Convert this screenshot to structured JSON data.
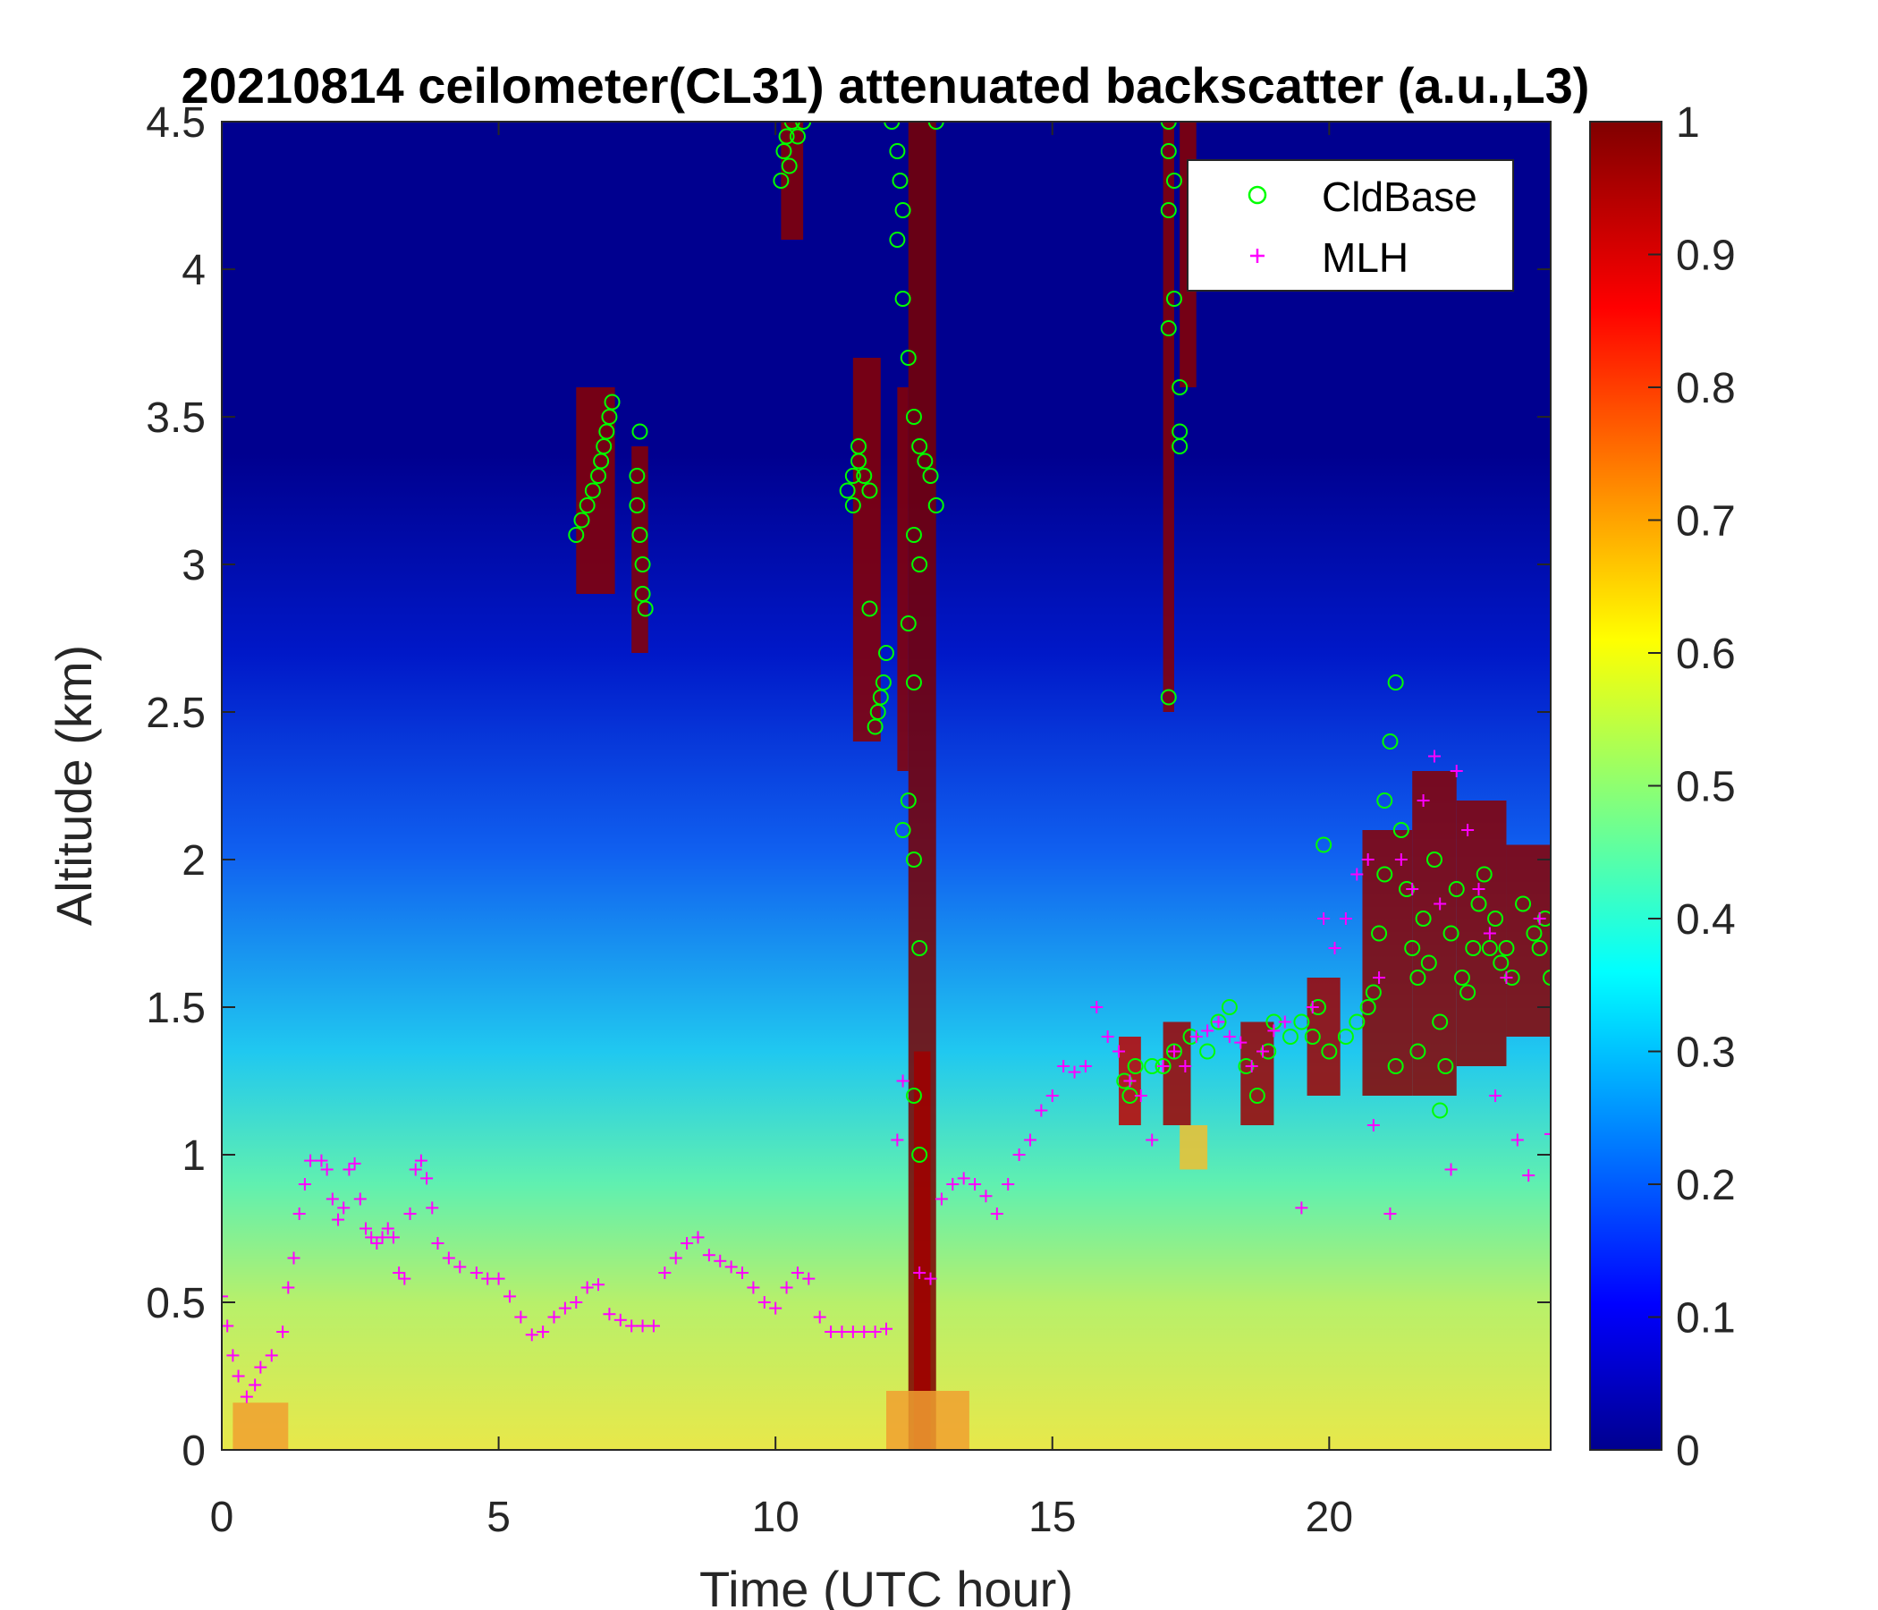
{
  "chart_data": {
    "type": "heatmap",
    "title": "20210814 ceilometer(CL31) attenuated backscatter (a.u.,L3)",
    "xlabel": "Time (UTC hour)",
    "ylabel": "Altitude (km)",
    "xlim": [
      0,
      24
    ],
    "ylim": [
      0,
      4.5
    ],
    "xticks": [
      0,
      5,
      10,
      15,
      20
    ],
    "xtick_labels": [
      "0",
      "5",
      "10",
      "15",
      "20"
    ],
    "yticks": [
      0,
      0.5,
      1,
      1.5,
      2,
      2.5,
      3,
      3.5,
      4,
      4.5
    ],
    "ytick_labels": [
      "0",
      "0.5",
      "1",
      "1.5",
      "2",
      "2.5",
      "3",
      "3.5",
      "4",
      "4.5"
    ],
    "colorbar": {
      "colormap": "jet",
      "range": [
        0,
        1
      ],
      "ticks": [
        0,
        0.1,
        0.2,
        0.3,
        0.4,
        0.5,
        0.6,
        0.7,
        0.8,
        0.9,
        1
      ],
      "tick_labels": [
        "0",
        "0.1",
        "0.2",
        "0.3",
        "0.4",
        "0.5",
        "0.6",
        "0.7",
        "0.8",
        "0.9",
        "1"
      ]
    },
    "legend": {
      "placement": "top-right",
      "entries": [
        {
          "label": "CldBase",
          "marker": "circle",
          "color": "#00ff00"
        },
        {
          "label": "MLH",
          "marker": "plus",
          "color": "#ff00ff"
        }
      ]
    },
    "series": [
      {
        "name": "CldBase",
        "marker": "circle",
        "color": "#00ff00",
        "points": [
          [
            6.4,
            3.1
          ],
          [
            6.5,
            3.15
          ],
          [
            6.6,
            3.2
          ],
          [
            6.7,
            3.25
          ],
          [
            6.8,
            3.3
          ],
          [
            6.9,
            3.4
          ],
          [
            7.0,
            3.5
          ],
          [
            7.05,
            3.55
          ],
          [
            6.95,
            3.45
          ],
          [
            6.85,
            3.35
          ],
          [
            7.5,
            3.3
          ],
          [
            7.5,
            3.2
          ],
          [
            7.55,
            3.1
          ],
          [
            7.6,
            3.0
          ],
          [
            7.6,
            2.9
          ],
          [
            7.65,
            2.85
          ],
          [
            7.55,
            3.45
          ],
          [
            10.1,
            4.3
          ],
          [
            10.15,
            4.4
          ],
          [
            10.2,
            4.45
          ],
          [
            10.3,
            4.5
          ],
          [
            10.4,
            4.45
          ],
          [
            10.5,
            4.5
          ],
          [
            10.25,
            4.35
          ],
          [
            11.3,
            3.25
          ],
          [
            11.4,
            3.3
          ],
          [
            11.5,
            3.35
          ],
          [
            11.6,
            3.3
          ],
          [
            11.7,
            3.25
          ],
          [
            11.5,
            3.4
          ],
          [
            11.4,
            3.2
          ],
          [
            11.7,
            2.85
          ],
          [
            11.8,
            2.45
          ],
          [
            11.85,
            2.5
          ],
          [
            11.9,
            2.55
          ],
          [
            11.95,
            2.6
          ],
          [
            12.0,
            2.7
          ],
          [
            12.1,
            4.5
          ],
          [
            12.2,
            4.4
          ],
          [
            12.25,
            4.3
          ],
          [
            12.3,
            4.2
          ],
          [
            12.2,
            4.1
          ],
          [
            12.3,
            3.9
          ],
          [
            12.4,
            3.7
          ],
          [
            12.5,
            3.5
          ],
          [
            12.6,
            3.4
          ],
          [
            12.7,
            3.35
          ],
          [
            12.8,
            3.3
          ],
          [
            12.9,
            3.2
          ],
          [
            12.5,
            3.1
          ],
          [
            12.6,
            3.0
          ],
          [
            12.4,
            2.8
          ],
          [
            12.5,
            2.6
          ],
          [
            12.4,
            2.2
          ],
          [
            12.3,
            2.1
          ],
          [
            12.5,
            2.0
          ],
          [
            12.6,
            1.7
          ],
          [
            12.5,
            1.2
          ],
          [
            12.6,
            1.0
          ],
          [
            12.9,
            4.5
          ],
          [
            17.1,
            4.5
          ],
          [
            17.1,
            4.4
          ],
          [
            17.2,
            4.3
          ],
          [
            17.1,
            4.2
          ],
          [
            17.2,
            3.9
          ],
          [
            17.1,
            3.8
          ],
          [
            17.3,
            3.6
          ],
          [
            17.3,
            3.45
          ],
          [
            17.3,
            3.4
          ],
          [
            17.1,
            2.55
          ],
          [
            16.3,
            1.25
          ],
          [
            16.4,
            1.2
          ],
          [
            16.5,
            1.3
          ],
          [
            16.8,
            1.3
          ],
          [
            17.0,
            1.3
          ],
          [
            17.2,
            1.35
          ],
          [
            17.5,
            1.4
          ],
          [
            17.8,
            1.35
          ],
          [
            18.0,
            1.45
          ],
          [
            18.2,
            1.5
          ],
          [
            18.5,
            1.3
          ],
          [
            18.7,
            1.2
          ],
          [
            18.9,
            1.35
          ],
          [
            19.0,
            1.45
          ],
          [
            19.3,
            1.4
          ],
          [
            19.5,
            1.45
          ],
          [
            19.7,
            1.4
          ],
          [
            19.8,
            1.5
          ],
          [
            19.9,
            2.05
          ],
          [
            20.0,
            1.35
          ],
          [
            20.3,
            1.4
          ],
          [
            20.5,
            1.45
          ],
          [
            20.7,
            1.5
          ],
          [
            20.8,
            1.55
          ],
          [
            20.9,
            1.75
          ],
          [
            21.0,
            1.95
          ],
          [
            21.0,
            2.2
          ],
          [
            21.1,
            2.4
          ],
          [
            21.2,
            2.6
          ],
          [
            21.3,
            2.1
          ],
          [
            21.4,
            1.9
          ],
          [
            21.5,
            1.7
          ],
          [
            21.6,
            1.6
          ],
          [
            21.7,
            1.8
          ],
          [
            21.8,
            1.65
          ],
          [
            21.9,
            2.0
          ],
          [
            22.0,
            1.45
          ],
          [
            22.1,
            1.3
          ],
          [
            22.2,
            1.75
          ],
          [
            22.3,
            1.9
          ],
          [
            22.4,
            1.6
          ],
          [
            22.5,
            1.55
          ],
          [
            22.6,
            1.7
          ],
          [
            22.7,
            1.85
          ],
          [
            22.8,
            1.95
          ],
          [
            22.9,
            1.7
          ],
          [
            23.0,
            1.8
          ],
          [
            23.1,
            1.65
          ],
          [
            23.3,
            1.6
          ],
          [
            23.5,
            1.85
          ],
          [
            23.7,
            1.75
          ],
          [
            23.8,
            1.7
          ],
          [
            23.9,
            1.8
          ],
          [
            24.0,
            1.6
          ],
          [
            21.2,
            1.3
          ],
          [
            21.6,
            1.35
          ],
          [
            22.0,
            1.15
          ],
          [
            23.2,
            1.7
          ]
        ]
      },
      {
        "name": "MLH",
        "marker": "plus",
        "color": "#ff00ff",
        "points": [
          [
            0.0,
            0.52
          ],
          [
            0.1,
            0.42
          ],
          [
            0.2,
            0.32
          ],
          [
            0.3,
            0.25
          ],
          [
            0.45,
            0.18
          ],
          [
            0.6,
            0.22
          ],
          [
            0.7,
            0.28
          ],
          [
            0.9,
            0.32
          ],
          [
            1.1,
            0.4
          ],
          [
            1.2,
            0.55
          ],
          [
            1.3,
            0.65
          ],
          [
            1.4,
            0.8
          ],
          [
            1.5,
            0.9
          ],
          [
            1.6,
            0.98
          ],
          [
            1.8,
            0.98
          ],
          [
            1.9,
            0.95
          ],
          [
            2.0,
            0.85
          ],
          [
            2.1,
            0.78
          ],
          [
            2.2,
            0.82
          ],
          [
            2.3,
            0.95
          ],
          [
            2.4,
            0.97
          ],
          [
            2.5,
            0.85
          ],
          [
            2.6,
            0.75
          ],
          [
            2.7,
            0.72
          ],
          [
            2.8,
            0.7
          ],
          [
            2.9,
            0.72
          ],
          [
            3.0,
            0.75
          ],
          [
            3.1,
            0.72
          ],
          [
            3.2,
            0.6
          ],
          [
            3.3,
            0.58
          ],
          [
            3.4,
            0.8
          ],
          [
            3.5,
            0.95
          ],
          [
            3.6,
            0.98
          ],
          [
            3.7,
            0.92
          ],
          [
            3.8,
            0.82
          ],
          [
            3.9,
            0.7
          ],
          [
            4.1,
            0.65
          ],
          [
            4.3,
            0.62
          ],
          [
            4.6,
            0.6
          ],
          [
            4.8,
            0.58
          ],
          [
            5.0,
            0.58
          ],
          [
            5.2,
            0.52
          ],
          [
            5.4,
            0.45
          ],
          [
            5.6,
            0.39
          ],
          [
            5.8,
            0.4
          ],
          [
            6.0,
            0.45
          ],
          [
            6.2,
            0.48
          ],
          [
            6.4,
            0.5
          ],
          [
            6.6,
            0.55
          ],
          [
            6.8,
            0.56
          ],
          [
            7.0,
            0.46
          ],
          [
            7.2,
            0.44
          ],
          [
            7.4,
            0.42
          ],
          [
            7.6,
            0.42
          ],
          [
            7.8,
            0.42
          ],
          [
            8.0,
            0.6
          ],
          [
            8.2,
            0.65
          ],
          [
            8.4,
            0.7
          ],
          [
            8.6,
            0.72
          ],
          [
            8.8,
            0.66
          ],
          [
            9.0,
            0.64
          ],
          [
            9.2,
            0.62
          ],
          [
            9.4,
            0.6
          ],
          [
            9.6,
            0.55
          ],
          [
            9.8,
            0.5
          ],
          [
            10.0,
            0.48
          ],
          [
            10.2,
            0.55
          ],
          [
            10.4,
            0.6
          ],
          [
            10.6,
            0.58
          ],
          [
            10.8,
            0.45
          ],
          [
            11.0,
            0.4
          ],
          [
            11.2,
            0.4
          ],
          [
            11.4,
            0.4
          ],
          [
            11.6,
            0.4
          ],
          [
            11.8,
            0.4
          ],
          [
            12.0,
            0.41
          ],
          [
            12.2,
            1.05
          ],
          [
            12.3,
            1.25
          ],
          [
            12.6,
            0.6
          ],
          [
            12.8,
            0.58
          ],
          [
            13.0,
            0.85
          ],
          [
            13.2,
            0.9
          ],
          [
            13.4,
            0.92
          ],
          [
            13.6,
            0.9
          ],
          [
            13.8,
            0.86
          ],
          [
            14.0,
            0.8
          ],
          [
            14.2,
            0.9
          ],
          [
            14.4,
            1.0
          ],
          [
            14.6,
            1.05
          ],
          [
            14.8,
            1.15
          ],
          [
            15.0,
            1.2
          ],
          [
            15.2,
            1.3
          ],
          [
            15.4,
            1.28
          ],
          [
            15.6,
            1.3
          ],
          [
            15.8,
            1.5
          ],
          [
            16.0,
            1.4
          ],
          [
            16.2,
            1.35
          ],
          [
            16.4,
            1.25
          ],
          [
            16.6,
            1.2
          ],
          [
            16.8,
            1.05
          ],
          [
            17.0,
            1.3
          ],
          [
            17.2,
            1.35
          ],
          [
            17.4,
            1.3
          ],
          [
            17.6,
            1.4
          ],
          [
            17.8,
            1.42
          ],
          [
            18.0,
            1.45
          ],
          [
            18.2,
            1.4
          ],
          [
            18.4,
            1.38
          ],
          [
            18.6,
            1.3
          ],
          [
            18.8,
            1.35
          ],
          [
            19.0,
            1.42
          ],
          [
            19.2,
            1.45
          ],
          [
            19.5,
            0.82
          ],
          [
            19.7,
            1.5
          ],
          [
            19.9,
            1.8
          ],
          [
            20.1,
            1.7
          ],
          [
            20.3,
            1.8
          ],
          [
            20.5,
            1.95
          ],
          [
            20.7,
            2.0
          ],
          [
            20.8,
            1.1
          ],
          [
            20.9,
            1.6
          ],
          [
            21.1,
            0.8
          ],
          [
            21.3,
            2.0
          ],
          [
            21.5,
            1.9
          ],
          [
            21.7,
            2.2
          ],
          [
            21.9,
            2.35
          ],
          [
            22.0,
            1.85
          ],
          [
            22.2,
            0.95
          ],
          [
            22.3,
            2.3
          ],
          [
            22.5,
            2.1
          ],
          [
            22.7,
            1.9
          ],
          [
            22.9,
            1.75
          ],
          [
            23.0,
            1.2
          ],
          [
            23.2,
            1.6
          ],
          [
            23.4,
            1.05
          ],
          [
            23.6,
            0.93
          ],
          [
            23.8,
            1.8
          ],
          [
            24.0,
            1.07
          ]
        ]
      }
    ]
  }
}
